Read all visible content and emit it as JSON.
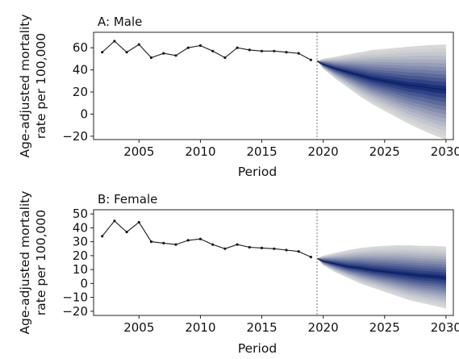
{
  "chart_data": [
    {
      "type": "line",
      "title": "A: Male",
      "xlabel": "Period",
      "ylabel": [
        "Age-adjusted mortality",
        "rate per 100,000"
      ],
      "xlim": [
        2001.3,
        2030.6
      ],
      "ylim": [
        -23,
        74
      ],
      "xticks": [
        2005,
        2010,
        2015,
        2020,
        2025,
        2030
      ],
      "yticks": [
        -20,
        0,
        20,
        40,
        60
      ],
      "divider_x": 2019.5,
      "series": [
        {
          "kind": "observed",
          "x": [
            2002,
            2003,
            2004,
            2005,
            2006,
            2007,
            2008,
            2009,
            2010,
            2011,
            2012,
            2013,
            2014,
            2015,
            2016,
            2017,
            2018,
            2019
          ],
          "values": [
            56,
            66,
            56,
            63,
            51,
            55,
            53,
            60,
            62,
            57,
            51,
            60,
            58,
            57,
            57,
            56,
            55,
            49
          ]
        },
        {
          "kind": "forecast",
          "x": [
            2019.5,
            2020,
            2021,
            2022,
            2023,
            2024,
            2025,
            2026,
            2027,
            2028,
            2029,
            2030
          ],
          "values": [
            48,
            45,
            41,
            38,
            35,
            32,
            30,
            28,
            26,
            25,
            23,
            22
          ],
          "interval_upper_outer": [
            48,
            50,
            52,
            54,
            56,
            58,
            59,
            60,
            61,
            62,
            62.5,
            63
          ],
          "interval_lower_outer": [
            48,
            41,
            32,
            24,
            16,
            9,
            3,
            -3,
            -9,
            -14,
            -19,
            -23
          ]
        }
      ],
      "colors": {
        "observed": "#1a1a1a",
        "forecast": "#0f1f5a",
        "fan_inner": "#1a2f78",
        "fan_outer": "#d8d8d8",
        "divider": "#777777"
      }
    },
    {
      "type": "line",
      "title": "B: Female",
      "xlabel": "Period",
      "ylabel": [
        "Age-adjusted mortality",
        "rate per 100,000"
      ],
      "xlim": [
        2001.3,
        2030.6
      ],
      "ylim": [
        -23,
        53
      ],
      "xticks": [
        2005,
        2010,
        2015,
        2020,
        2025,
        2030
      ],
      "yticks": [
        -20,
        -10,
        0,
        10,
        20,
        30,
        40,
        50
      ],
      "divider_x": 2019.5,
      "series": [
        {
          "kind": "observed",
          "x": [
            2002,
            2003,
            2004,
            2005,
            2006,
            2007,
            2008,
            2009,
            2010,
            2011,
            2012,
            2013,
            2014,
            2015,
            2016,
            2017,
            2018,
            2019
          ],
          "values": [
            34,
            45,
            37,
            44,
            30,
            29,
            28,
            31,
            32,
            28,
            25,
            28,
            26,
            25.5,
            25,
            24,
            23,
            19
          ]
        },
        {
          "kind": "forecast",
          "x": [
            2019.5,
            2020,
            2021,
            2022,
            2023,
            2024,
            2025,
            2026,
            2027,
            2028,
            2029,
            2030
          ],
          "values": [
            18,
            16,
            14,
            12,
            11,
            9.5,
            8.5,
            7.5,
            6.5,
            5.5,
            5,
            4
          ],
          "interval_upper_outer": [
            18,
            20,
            22,
            24,
            25.5,
            26.5,
            27,
            27.5,
            27.5,
            27,
            27,
            26.5
          ],
          "interval_lower_outer": [
            18,
            13,
            8,
            4,
            0,
            -3,
            -6,
            -9,
            -12,
            -14,
            -16,
            -18
          ]
        }
      ],
      "colors": {
        "observed": "#1a1a1a",
        "forecast": "#0f1f5a",
        "fan_inner": "#1a2f78",
        "fan_outer": "#d8d8d8",
        "divider": "#777777"
      }
    }
  ]
}
